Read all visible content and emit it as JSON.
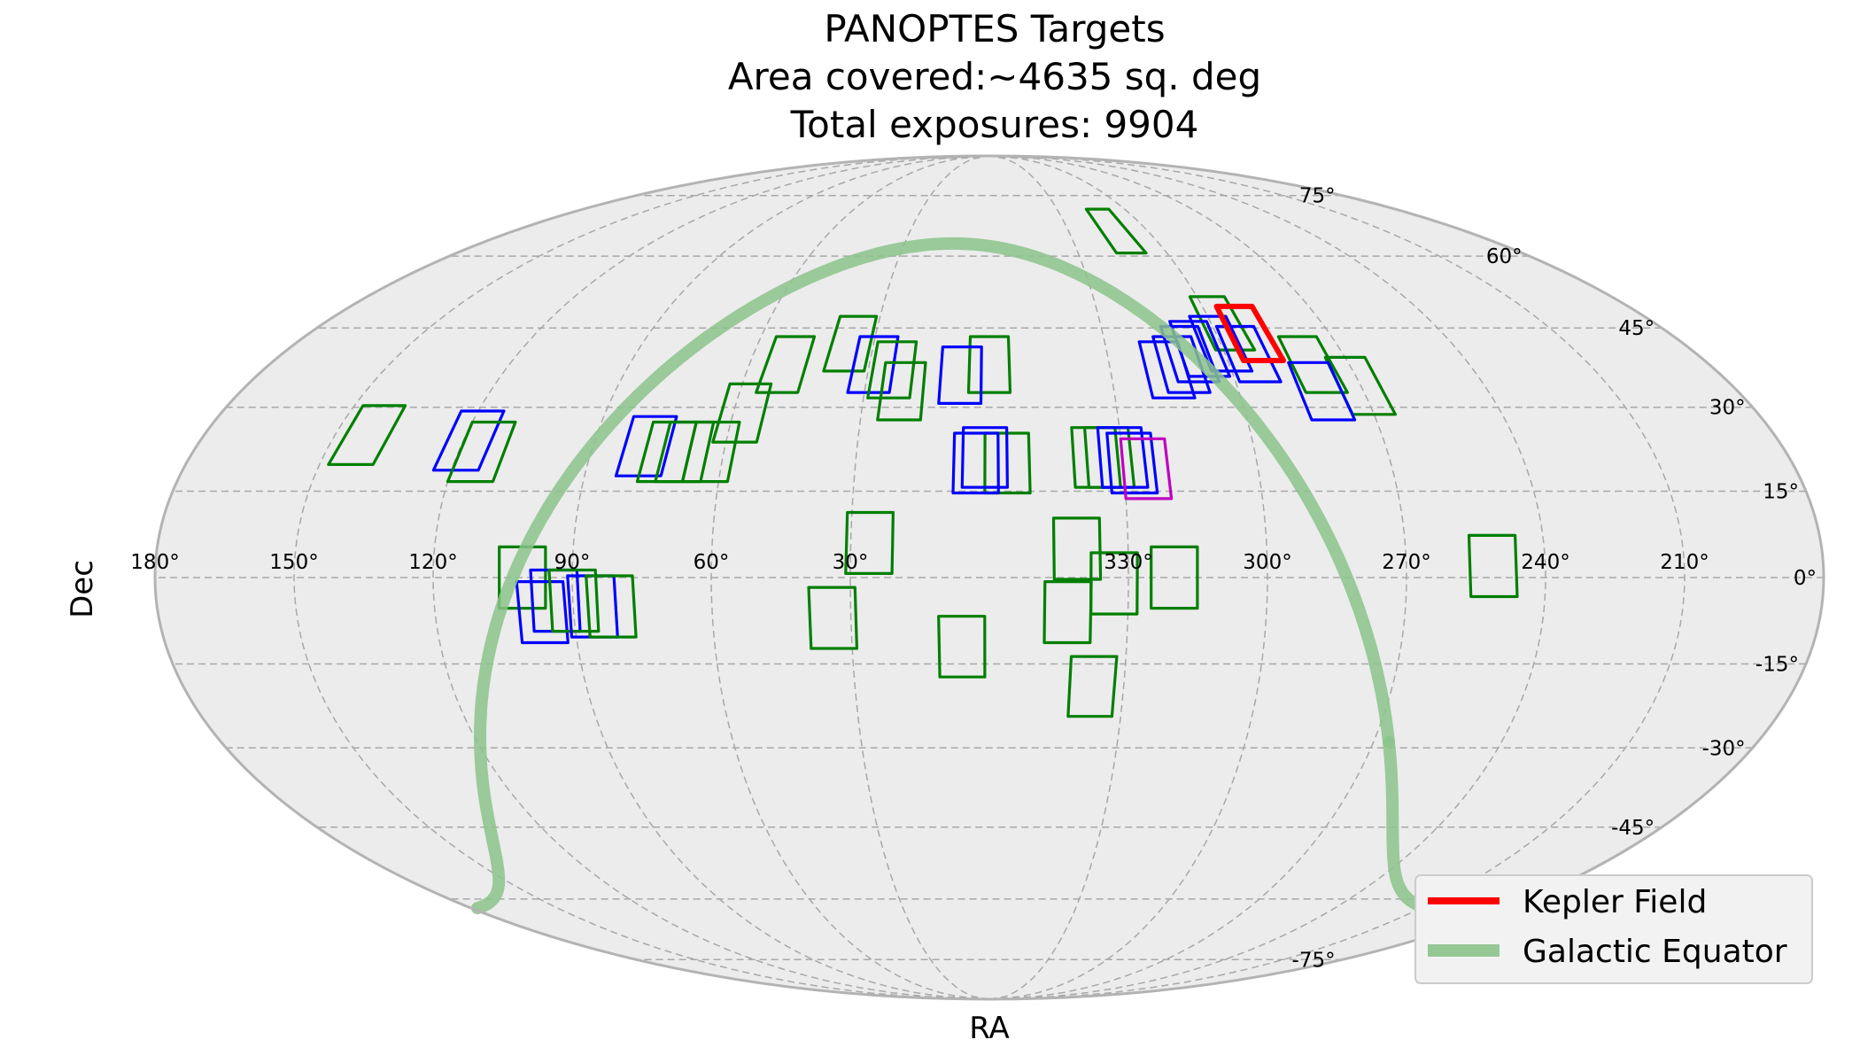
{
  "chart_data": {
    "type": "scatter",
    "projection": "mollweide",
    "title_lines": [
      "PANOPTES Targets",
      "Area covered:~4635 sq. deg",
      "Total exposures: 9904"
    ],
    "xlabel": "RA",
    "ylabel": "Dec",
    "ra_ticks": [
      "330°",
      "300°",
      "270°",
      "240°",
      "210°",
      "180°",
      "150°",
      "120°",
      "90°",
      "60°",
      "30°"
    ],
    "dec_ticks": [
      "75°",
      "60°",
      "45°",
      "30°",
      "15°",
      "0°",
      "-15°",
      "-30°",
      "-45°",
      "-60°",
      "-75°"
    ],
    "grid": true,
    "legend": {
      "position": "lower-right",
      "entries": [
        {
          "label": "Kepler Field",
          "color": "#ff0000"
        },
        {
          "label": "Galactic Equator",
          "color": "#8cc38c"
        }
      ]
    },
    "colors": {
      "green": "#007f00",
      "blue": "#0000ff",
      "magenta": "#bf00bf",
      "red": "#ff0000",
      "galactic": "#8cc38c"
    },
    "fields": [
      {
        "ra": 312,
        "dec": 66,
        "color": "green"
      },
      {
        "ra": 297,
        "dec": 46,
        "color": "green"
      },
      {
        "ra": 291,
        "dec": 44,
        "color": "green"
      },
      {
        "ra": 279,
        "dec": 38,
        "color": "green"
      },
      {
        "ra": 270,
        "dec": 34,
        "color": "green"
      },
      {
        "ra": 316,
        "dec": 37,
        "color": "blue"
      },
      {
        "ra": 312,
        "dec": 38,
        "color": "blue"
      },
      {
        "ra": 309,
        "dec": 40,
        "color": "blue"
      },
      {
        "ra": 306,
        "dec": 41,
        "color": "blue"
      },
      {
        "ra": 300,
        "dec": 42,
        "color": "blue"
      },
      {
        "ra": 294,
        "dec": 40,
        "color": "blue"
      },
      {
        "ra": 280,
        "dec": 33,
        "color": "blue"
      },
      {
        "ra": 0,
        "dec": 38,
        "color": "green"
      },
      {
        "ra": 7,
        "dec": 36,
        "color": "blue"
      },
      {
        "ra": 356,
        "dec": 20,
        "color": "green"
      },
      {
        "ra": 3,
        "dec": 20,
        "color": "blue"
      },
      {
        "ra": 1,
        "dec": 21,
        "color": "blue"
      },
      {
        "ra": 26,
        "dec": 6,
        "color": "green"
      },
      {
        "ra": 336,
        "dec": 21,
        "color": "green"
      },
      {
        "ra": 333,
        "dec": 21,
        "color": "green"
      },
      {
        "ra": 330,
        "dec": 21,
        "color": "blue"
      },
      {
        "ra": 328,
        "dec": 20,
        "color": "blue"
      },
      {
        "ra": 325,
        "dec": 19,
        "color": "magenta"
      },
      {
        "ra": 341,
        "dec": 5,
        "color": "green"
      },
      {
        "ra": 333,
        "dec": -1,
        "color": "green"
      },
      {
        "ra": 320,
        "dec": 0,
        "color": "green"
      },
      {
        "ra": 343,
        "dec": -6,
        "color": "green"
      },
      {
        "ra": 337,
        "dec": -19,
        "color": "green"
      },
      {
        "ra": 251,
        "dec": 2,
        "color": "green"
      },
      {
        "ra": 143,
        "dec": 25,
        "color": "green"
      },
      {
        "ra": 119,
        "dec": 24,
        "color": "blue"
      },
      {
        "ra": 115,
        "dec": 22,
        "color": "green"
      },
      {
        "ra": 101,
        "dec": 0,
        "color": "green"
      },
      {
        "ra": 97,
        "dec": -6,
        "color": "blue"
      },
      {
        "ra": 94,
        "dec": -4,
        "color": "blue"
      },
      {
        "ra": 90,
        "dec": -4,
        "color": "green"
      },
      {
        "ra": 86,
        "dec": -5,
        "color": "blue"
      },
      {
        "ra": 82,
        "dec": -5,
        "color": "green"
      },
      {
        "ra": 78,
        "dec": 23,
        "color": "blue"
      },
      {
        "ra": 73,
        "dec": 22,
        "color": "green"
      },
      {
        "ra": 69,
        "dec": 22,
        "color": "green"
      },
      {
        "ra": 63,
        "dec": 22,
        "color": "green"
      },
      {
        "ra": 58,
        "dec": 29,
        "color": "green"
      },
      {
        "ra": 51,
        "dec": 38,
        "color": "green"
      },
      {
        "ra": 36,
        "dec": 42,
        "color": "green"
      },
      {
        "ra": 29,
        "dec": 38,
        "color": "blue"
      },
      {
        "ra": 24,
        "dec": 37,
        "color": "green"
      },
      {
        "ra": 21,
        "dec": 33,
        "color": "green"
      },
      {
        "ra": 34,
        "dec": -7,
        "color": "green"
      },
      {
        "ra": 6,
        "dec": -12,
        "color": "green"
      }
    ],
    "kepler_field": {
      "ra": 291,
      "dec": 44,
      "color": "red"
    }
  }
}
